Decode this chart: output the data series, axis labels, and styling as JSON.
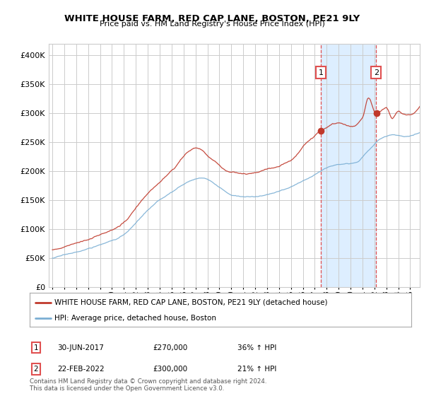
{
  "title": "WHITE HOUSE FARM, RED CAP LANE, BOSTON, PE21 9LY",
  "subtitle": "Price paid vs. HM Land Registry's House Price Index (HPI)",
  "hpi_color": "#7bafd4",
  "property_color": "#c0392b",
  "annotation1_label": "1",
  "annotation2_label": "2",
  "annotation1_date": "30-JUN-2017",
  "annotation1_price": "£270,000",
  "annotation1_hpi": "36% ↑ HPI",
  "annotation1_year": 2017.5,
  "annotation2_date": "22-FEB-2022",
  "annotation2_price": "£300,000",
  "annotation2_hpi": "21% ↑ HPI",
  "annotation2_year": 2022.15,
  "legend1": "WHITE HOUSE FARM, RED CAP LANE, BOSTON, PE21 9LY (detached house)",
  "legend2": "HPI: Average price, detached house, Boston",
  "footnote": "Contains HM Land Registry data © Crown copyright and database right 2024.\nThis data is licensed under the Open Government Licence v3.0.",
  "ylim": [
    0,
    420000
  ],
  "yticks": [
    0,
    50000,
    100000,
    150000,
    200000,
    250000,
    300000,
    350000,
    400000
  ],
  "xlim_left": 1994.7,
  "xlim_right": 2025.8,
  "background_color": "#ffffff",
  "grid_color": "#cccccc",
  "dashed_line_color": "#e05050",
  "shade_color": "#ddeeff"
}
